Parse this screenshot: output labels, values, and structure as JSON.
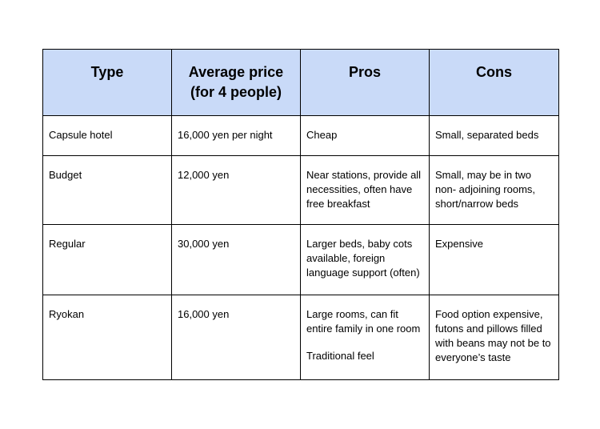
{
  "table": {
    "headers": [
      "Type",
      "Average price\n(for 4 people)",
      "Pros",
      "Cons"
    ],
    "header_bg": "#c9daf8",
    "rows": [
      {
        "type": "Capsule hotel",
        "price": "16,000 yen per night",
        "pros": [
          "Cheap"
        ],
        "cons": "Small, separated beds"
      },
      {
        "type": "Budget",
        "price": "12,000 yen",
        "pros": [
          "Near stations, provide all necessities, often have free breakfast"
        ],
        "cons": "Small, may be in two non- adjoining rooms, short/narrow beds"
      },
      {
        "type": "Regular",
        "price": "30,000 yen",
        "pros": [
          "Larger beds, baby cots available, foreign language support (often)"
        ],
        "cons": "Expensive"
      },
      {
        "type": "Ryokan",
        "price": "16,000 yen",
        "pros": [
          "Large rooms, can fit entire family in one room",
          "Traditional feel"
        ],
        "cons": "Food option expensive, futons and pillows filled with beans may not be to everyone’s taste"
      }
    ]
  }
}
